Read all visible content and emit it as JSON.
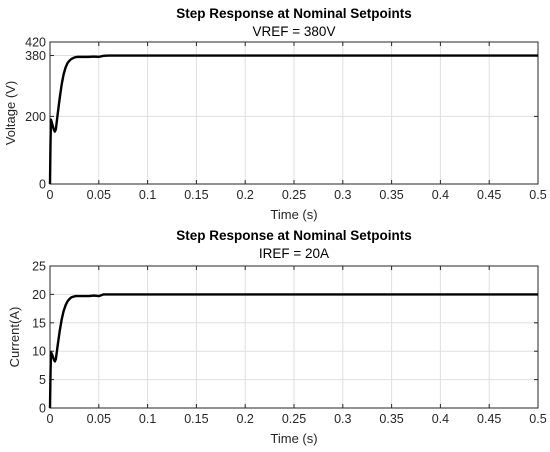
{
  "chart_data": [
    {
      "type": "line",
      "title": "Step Response at Nominal Setpoints",
      "subtitle": "VREF = 380V",
      "xlabel": "Time (s)",
      "ylabel": "Voltage (V)",
      "xlim": [
        0,
        0.5
      ],
      "ylim": [
        0,
        420
      ],
      "xticks": [
        "0",
        "0.05",
        "0.1",
        "0.15",
        "0.2",
        "0.25",
        "0.3",
        "0.35",
        "0.4",
        "0.45",
        "0.5"
      ],
      "yticks": [
        "0",
        "200",
        "380",
        "420"
      ],
      "grid": true,
      "series": [
        {
          "x": [
            0,
            0.0005,
            0.001,
            0.002,
            0.003,
            0.004,
            0.005,
            0.006,
            0.008,
            0.01,
            0.012,
            0.014,
            0.016,
            0.018,
            0.02,
            0.022,
            0.024,
            0.026,
            0.028,
            0.03,
            0.035,
            0.04,
            0.045,
            0.05,
            0.055,
            0.06,
            0.1,
            0.2,
            0.3,
            0.4,
            0.5
          ],
          "y": [
            0,
            120,
            190,
            180,
            170,
            160,
            155,
            162,
            210,
            255,
            295,
            325,
            345,
            358,
            365,
            370,
            373,
            375,
            376,
            376,
            376,
            376,
            377,
            376,
            379,
            380,
            380,
            380,
            380,
            380,
            380
          ]
        }
      ]
    },
    {
      "type": "line",
      "title": "Step Response at Nominal Setpoints",
      "subtitle": "IREF = 20A",
      "xlabel": "Time (s)",
      "ylabel": "Current(A)",
      "xlim": [
        0,
        0.5
      ],
      "ylim": [
        0,
        25
      ],
      "xticks": [
        "0",
        "0.05",
        "0.1",
        "0.15",
        "0.2",
        "0.25",
        "0.3",
        "0.35",
        "0.4",
        "0.45",
        "0.5"
      ],
      "yticks": [
        "0",
        "5",
        "10",
        "15",
        "20",
        "25"
      ],
      "grid": true,
      "series": [
        {
          "x": [
            0,
            0.0005,
            0.001,
            0.002,
            0.003,
            0.004,
            0.005,
            0.006,
            0.008,
            0.01,
            0.012,
            0.014,
            0.016,
            0.018,
            0.02,
            0.022,
            0.024,
            0.026,
            0.028,
            0.03,
            0.035,
            0.04,
            0.045,
            0.05,
            0.055,
            0.06,
            0.1,
            0.2,
            0.3,
            0.4,
            0.5
          ],
          "y": [
            0,
            6,
            9.8,
            9.5,
            9.0,
            8.5,
            8.2,
            8.6,
            11.2,
            13.6,
            15.6,
            17.1,
            18.1,
            18.8,
            19.2,
            19.5,
            19.6,
            19.7,
            19.7,
            19.7,
            19.7,
            19.7,
            19.8,
            19.7,
            20.0,
            20.0,
            20.0,
            20.0,
            20.0,
            20.0,
            20.0
          ]
        }
      ]
    }
  ]
}
